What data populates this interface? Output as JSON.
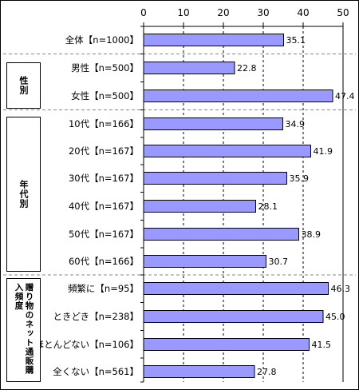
{
  "chart_data": {
    "type": "bar",
    "orientation": "horizontal",
    "xlim": [
      0,
      50
    ],
    "x_ticks": [
      "0",
      "10",
      "20",
      "30",
      "40",
      "50"
    ],
    "gridlines": "vertical dashed",
    "bar_color": "#9999ff",
    "bar_edge_color": "#000000",
    "categories": [
      "全体【n=1000】",
      "男性【n=500】",
      "女性【n=500】",
      "10代【n=166】",
      "20代【n=167】",
      "30代【n=167】",
      "40代【n=167】",
      "50代【n=167】",
      "60代【n=166】",
      "頻繁に【n=95】",
      "ときどき【n=238】",
      "ほとんどない【n=106】",
      "全くない【n=561】"
    ],
    "values": [
      35.1,
      22.8,
      47.4,
      34.9,
      41.9,
      35.9,
      28.1,
      38.9,
      30.7,
      46.3,
      45.0,
      41.5,
      27.8
    ],
    "value_labels": [
      "35.1",
      "22.8",
      "47.4",
      "34.9",
      "41.9",
      "35.9",
      "28.1",
      "38.9",
      "30.7",
      "46.3",
      "45.0",
      "41.5",
      "27.8"
    ],
    "groups": [
      {
        "label": "性別",
        "categories": [
          "男性【n=500】",
          "女性【n=500】"
        ]
      },
      {
        "label": "年代別",
        "categories": [
          "10代【n=166】",
          "20代【n=167】",
          "30代【n=167】",
          "40代【n=167】",
          "50代【n=167】",
          "60代【n=166】"
        ]
      },
      {
        "label": "贈り物のネット通販購入頻度",
        "categories": [
          "頻繁に【n=95】",
          "ときどき【n=238】",
          "ほとんどない【n=106】",
          "全くない【n=561】"
        ]
      }
    ]
  }
}
